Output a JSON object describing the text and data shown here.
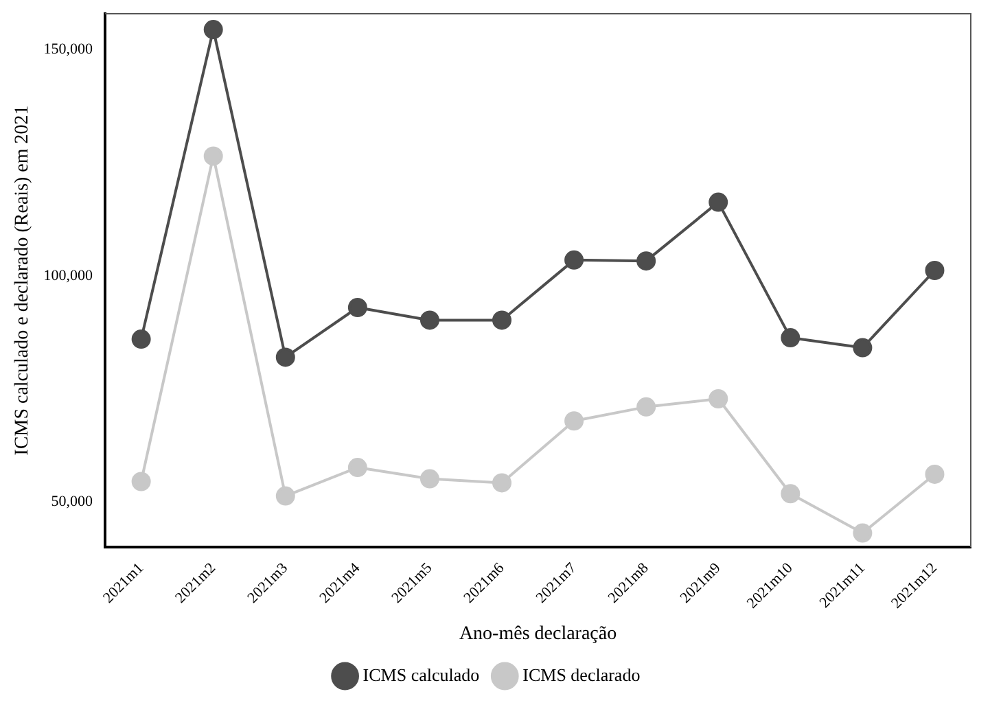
{
  "chart_data": {
    "type": "line",
    "xlabel": "Ano-mês declaração",
    "ylabel": "ICMS calculado e declarado (Reais) em 2021",
    "categories": [
      "2021m1",
      "2021m2",
      "2021m3",
      "2021m4",
      "2021m5",
      "2021m6",
      "2021m7",
      "2021m8",
      "2021m9",
      "2021m10",
      "2021m11",
      "2021m12"
    ],
    "series": [
      {
        "name": "ICMS calculado",
        "color": "#4d4d4d",
        "values": [
          86000,
          154500,
          82000,
          93000,
          90200,
          90200,
          103500,
          103300,
          116300,
          86300,
          84100,
          101200
        ]
      },
      {
        "name": "ICMS declarado",
        "color": "#c8c8c8",
        "values": [
          54500,
          126500,
          51300,
          57600,
          55100,
          54200,
          67900,
          71000,
          72800,
          51800,
          43100,
          56100
        ]
      }
    ],
    "ylim": [
      40000,
      158000
    ],
    "yticks": [
      {
        "value": 50000,
        "label": "50,000"
      },
      {
        "value": 100000,
        "label": "100,000"
      },
      {
        "value": 150000,
        "label": "150,000"
      }
    ],
    "grid": false,
    "legend": "bottom",
    "marker": "circle",
    "line_style": "solid"
  }
}
